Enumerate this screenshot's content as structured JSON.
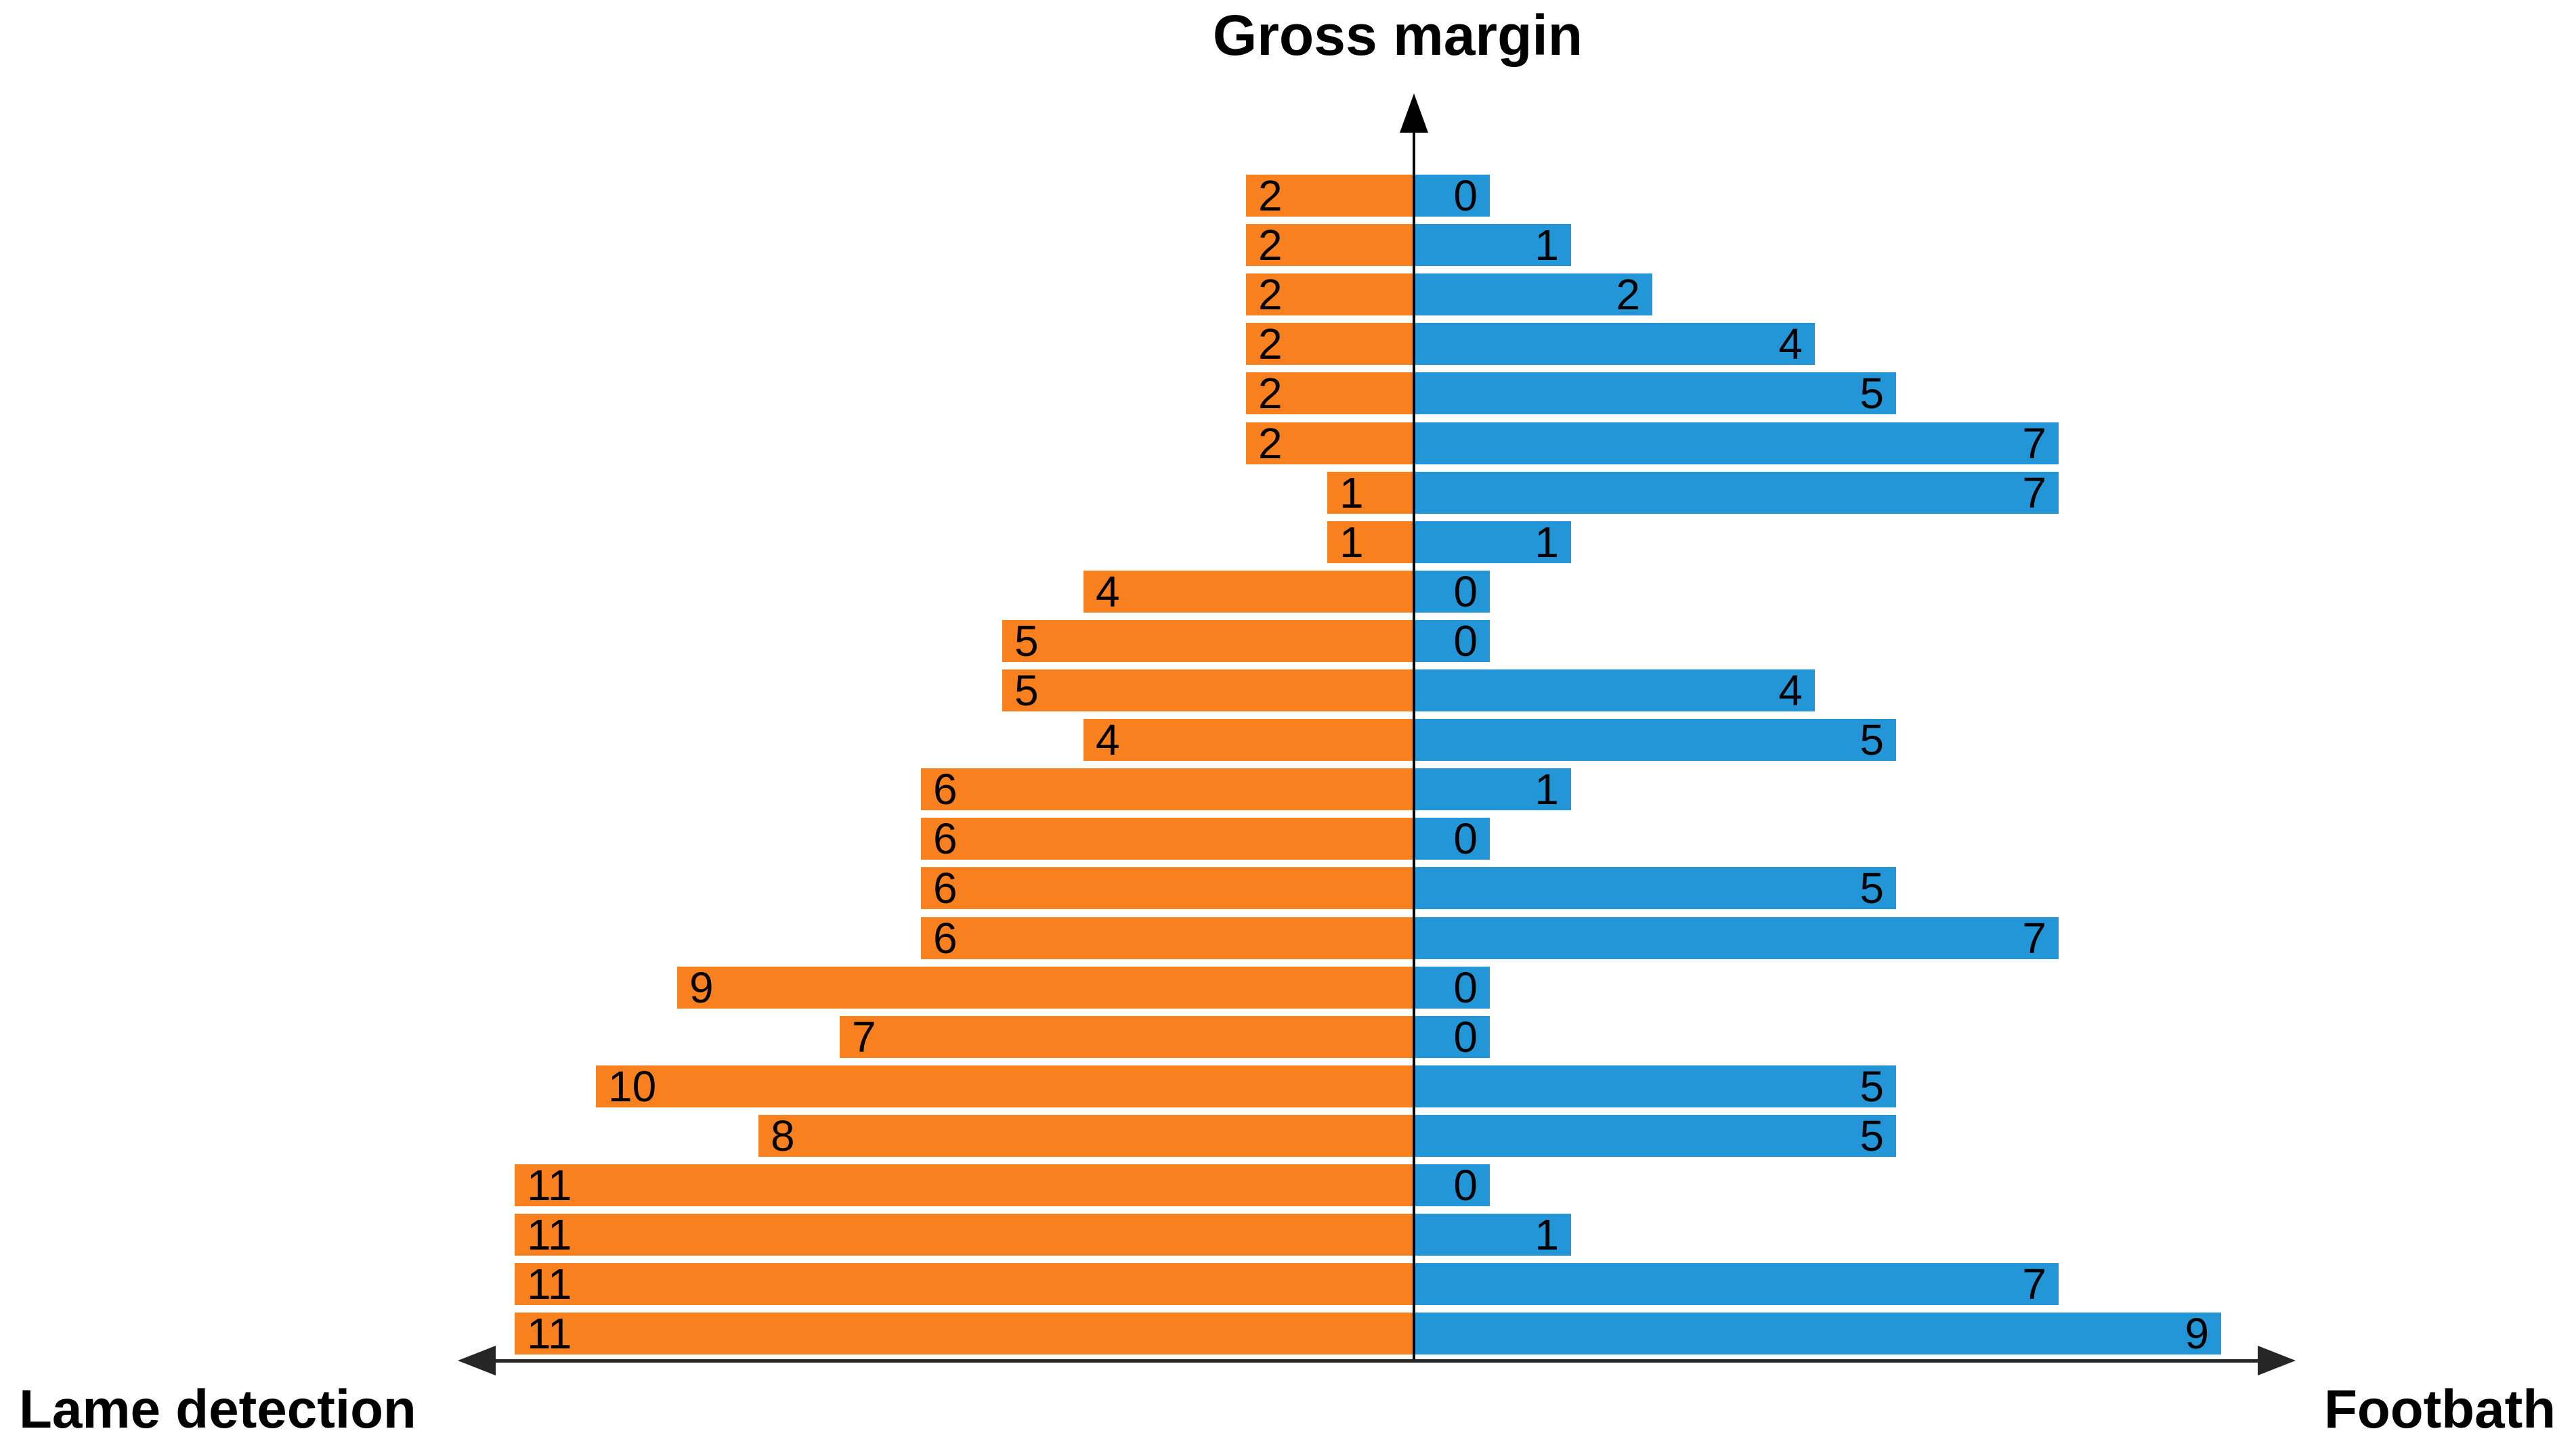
{
  "title": "Gross margin",
  "axis": {
    "left_label": "Lame detection",
    "right_label": "Footbath"
  },
  "colors": {
    "left_series": "#F8801F",
    "right_series": "#2296D6",
    "axis_line": "#262626"
  },
  "chart_data": {
    "type": "bar",
    "subtype": "butterfly-tornado",
    "orientation": "horizontal",
    "value_axis_title": "Gross margin",
    "rows_top_to_bottom": 24,
    "value_labels_shown": true,
    "axis_range_each_side": [
      0,
      11
    ],
    "grid": false,
    "legend_position": "bottom-axis-ends",
    "series": [
      {
        "name": "Lame detection",
        "side": "left",
        "color": "#F8801F",
        "values": [
          2,
          2,
          2,
          2,
          2,
          2,
          1,
          1,
          4,
          5,
          5,
          4,
          6,
          6,
          6,
          6,
          9,
          7,
          10,
          8,
          11,
          11,
          11,
          11
        ]
      },
      {
        "name": "Footbath",
        "side": "right",
        "color": "#2296D6",
        "values": [
          0,
          1,
          2,
          4,
          5,
          7,
          7,
          1,
          0,
          0,
          4,
          5,
          1,
          0,
          5,
          7,
          0,
          0,
          5,
          5,
          0,
          1,
          7,
          9
        ]
      }
    ]
  }
}
